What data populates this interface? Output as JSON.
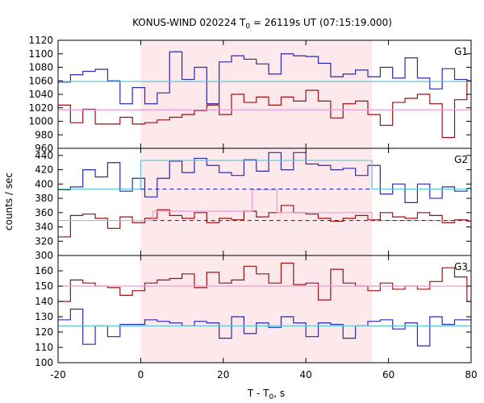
{
  "chart_data": {
    "type": "line",
    "title": "KONUS-WIND 020224 T",
    "title_sub": "0",
    "title_rest": " = 26119s UT (07:15:19.000)",
    "xlabel": "T - T",
    "xlabel_sub": "0",
    "xlabel_rest": ", s",
    "ylabel": "counts / sec",
    "xlim": [
      -20,
      80
    ],
    "xticks": [
      "-20",
      "0",
      "20",
      "40",
      "60",
      "80"
    ],
    "highlight_interval": [
      0,
      56
    ],
    "colors": {
      "blue": "#2a2ab0",
      "darkred": "#9b1111",
      "cyan": "#5fc6d8",
      "pink": "#ea9ad6",
      "highlight": "#fde8ec"
    },
    "panels": [
      {
        "label": "G1",
        "ylim": [
          960,
          1120
        ],
        "yticks": [
          "960",
          "980",
          "1000",
          "1020",
          "1040",
          "1060",
          "1080",
          "1100",
          "1120"
        ],
        "series": [
          {
            "color": "blue",
            "step": true,
            "x": [
              -20,
              -17,
              -14,
              -11,
              -8,
              -5,
              -2,
              1,
              4,
              7,
              10,
              13,
              16,
              19,
              22,
              25,
              28,
              31,
              34,
              37,
              40,
              43,
              46,
              49,
              52,
              55,
              58,
              61,
              64,
              67,
              70,
              73,
              76,
              79
            ],
            "values": [
              1058,
              1069,
              1074,
              1077,
              1060,
              1026,
              1050,
              1026,
              1042,
              1103,
              1062,
              1080,
              1026,
              1088,
              1097,
              1092,
              1085,
              1070,
              1100,
              1097,
              1096,
              1086,
              1066,
              1070,
              1076,
              1066,
              1080,
              1064,
              1094,
              1064,
              1048,
              1078,
              1062,
              1060
            ]
          },
          {
            "color": "darkred",
            "step": true,
            "x": [
              -20,
              -17,
              -14,
              -11,
              -8,
              -5,
              -2,
              1,
              4,
              7,
              10,
              13,
              16,
              19,
              22,
              25,
              28,
              31,
              34,
              37,
              40,
              43,
              46,
              49,
              52,
              55,
              58,
              61,
              64,
              67,
              70,
              73,
              76,
              79
            ],
            "values": [
              1024,
              998,
              1018,
              996,
              996,
              1006,
              996,
              998,
              1002,
              1006,
              1010,
              1016,
              1024,
              1010,
              1040,
              1028,
              1036,
              1024,
              1036,
              1030,
              1046,
              1030,
              1005,
              1026,
              1030,
              1010,
              994,
              1028,
              1034,
              1040,
              1026,
              976,
              1032,
              1060
            ]
          },
          {
            "color": "cyan",
            "step": false,
            "x": [
              -20,
              80
            ],
            "values": [
              1059,
              1059
            ]
          },
          {
            "color": "pink",
            "step": false,
            "x": [
              -20,
              80
            ],
            "values": [
              1017,
              1017
            ]
          }
        ]
      },
      {
        "label": "G2",
        "ylim": [
          300,
          450
        ],
        "yticks": [
          "300",
          "320",
          "340",
          "360",
          "380",
          "400",
          "420",
          "440"
        ],
        "series": [
          {
            "color": "blue",
            "step": true,
            "x": [
              -20,
              -17,
              -14,
              -11,
              -8,
              -5,
              -2,
              1,
              4,
              7,
              10,
              13,
              16,
              19,
              22,
              25,
              28,
              31,
              34,
              37,
              40,
              43,
              46,
              49,
              52,
              55,
              58,
              61,
              64,
              67,
              70,
              73,
              76,
              79
            ],
            "values": [
              392,
              396,
              420,
              410,
              430,
              390,
              408,
              382,
              408,
              432,
              416,
              436,
              426,
              416,
              412,
              434,
              418,
              444,
              420,
              444,
              428,
              426,
              420,
              422,
              412,
              426,
              386,
              400,
              374,
              400,
              380,
              396,
              390,
              394
            ]
          },
          {
            "color": "darkred",
            "step": true,
            "x": [
              -20,
              -17,
              -14,
              -11,
              -8,
              -5,
              -2,
              1,
              4,
              7,
              10,
              13,
              16,
              19,
              22,
              25,
              28,
              31,
              34,
              37,
              40,
              43,
              46,
              49,
              52,
              55,
              58,
              61,
              64,
              67,
              70,
              73,
              76,
              79
            ],
            "values": [
              326,
              356,
              358,
              352,
              338,
              354,
              346,
              352,
              364,
              356,
              352,
              360,
              346,
              352,
              350,
              362,
              354,
              360,
              370,
              360,
              358,
              352,
              348,
              352,
              356,
              350,
              360,
              354,
              352,
              360,
              356,
              346,
              350,
              348
            ]
          },
          {
            "color": "cyan",
            "step": true,
            "x": [
              -20,
              0,
              56,
              80
            ],
            "values": [
              393,
              433,
              393,
              393
            ]
          },
          {
            "color": "pink",
            "step": true,
            "x": [
              -20,
              3,
              27,
              33,
              56,
              80
            ],
            "values": [
              349,
              362,
              392,
              360,
              349,
              349
            ]
          },
          {
            "color": "blue",
            "dashed": true,
            "x": [
              0,
              56
            ],
            "values": [
              393,
              393
            ]
          },
          {
            "color": "darkred",
            "dashed": true,
            "x": [
              3,
              80
            ],
            "values": [
              349,
              349
            ]
          }
        ]
      },
      {
        "label": "G3",
        "ylim": [
          100,
          170
        ],
        "yticks": [
          "100",
          "110",
          "120",
          "130",
          "140",
          "150",
          "160"
        ],
        "series": [
          {
            "color": "darkred",
            "step": true,
            "x": [
              -20,
              -17,
              -14,
              -11,
              -8,
              -5,
              -2,
              1,
              4,
              7,
              10,
              13,
              16,
              19,
              22,
              25,
              28,
              31,
              34,
              37,
              40,
              43,
              46,
              49,
              52,
              55,
              58,
              61,
              64,
              67,
              70,
              73,
              76,
              79
            ],
            "values": [
              140,
              154,
              152,
              150,
              149,
              144,
              147,
              152,
              154,
              155,
              158,
              149,
              159,
              152,
              154,
              163,
              158,
              152,
              165,
              151,
              152,
              141,
              161,
              152,
              150,
              147,
              152,
              148,
              150,
              148,
              153,
              162,
              156,
              140
            ]
          },
          {
            "color": "blue",
            "step": true,
            "x": [
              -20,
              -17,
              -14,
              -11,
              -8,
              -5,
              -2,
              1,
              4,
              7,
              10,
              13,
              16,
              19,
              22,
              25,
              28,
              31,
              34,
              37,
              40,
              43,
              46,
              49,
              52,
              55,
              58,
              61,
              64,
              67,
              70,
              73,
              76,
              79
            ],
            "values": [
              128,
              135,
              112,
              124,
              117,
              125,
              125,
              128,
              127,
              126,
              124,
              127,
              126,
              116,
              130,
              119,
              126,
              123,
              130,
              126,
              117,
              126,
              125,
              116,
              124,
              127,
              128,
              122,
              126,
              111,
              130,
              125,
              128,
              128
            ]
          },
          {
            "color": "pink",
            "step": false,
            "x": [
              -20,
              80
            ],
            "values": [
              150,
              150
            ]
          },
          {
            "color": "cyan",
            "step": false,
            "x": [
              -20,
              80
            ],
            "values": [
              124,
              124
            ]
          }
        ]
      }
    ]
  }
}
